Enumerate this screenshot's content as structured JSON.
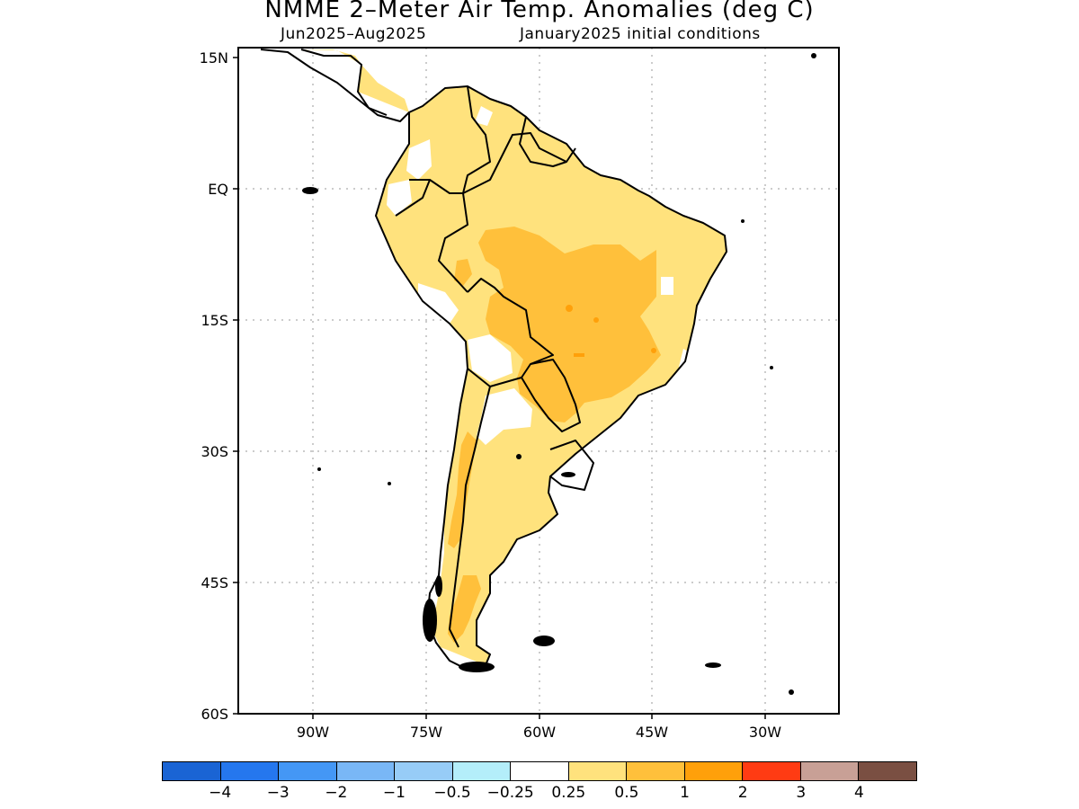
{
  "title": "NMME 2–Meter Air Temp. Anomalies (deg C)",
  "subtitle_period": "Jun2025–Aug2025",
  "subtitle_init": "January2025 initial conditions",
  "axes": {
    "lat_ticks": [
      "15N",
      "EQ",
      "15S",
      "30S",
      "45S",
      "60S"
    ],
    "lon_ticks": [
      "90W",
      "75W",
      "60W",
      "45W",
      "30W"
    ]
  },
  "colorbar": {
    "colors": [
      "#1a64d4",
      "#2577ee",
      "#4497f5",
      "#79b7f6",
      "#97ccf7",
      "#b4eefa",
      "#ffffff",
      "#ffe27d",
      "#ffc03b",
      "#ffa00a",
      "#ff3b13",
      "#c8a096",
      "#7a4f42"
    ],
    "labels": [
      "−4",
      "−3",
      "−2",
      "−1",
      "−0.5",
      "−0.25",
      "0.25",
      "0.5",
      "1",
      "2",
      "3",
      "4"
    ]
  },
  "map_colors": {
    "anomaly_025_05": "#ffe27d",
    "anomaly_05_1": "#ffc03b",
    "anomaly_1_2": "#ffa00a",
    "outline": "#000000"
  }
}
